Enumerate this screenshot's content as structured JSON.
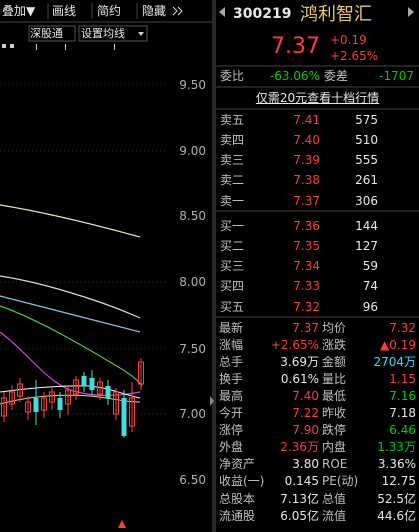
{
  "toolbar": [
    "叠加▼",
    "画线",
    "简约",
    "隐藏"
  ],
  "sub_toolbar": [
    "深股通",
    "设置均线"
  ],
  "y_axis_labels": [
    "9.50",
    "9.00",
    "8.50",
    "8.00",
    "7.50",
    "7.00",
    "6.50"
  ],
  "quote": {
    "code": "300219",
    "name": "鸿利智汇",
    "price": "7.37",
    "change": "+0.19",
    "change_pct": "+2.65%"
  },
  "order_ratio": {
    "label": "委比",
    "value": "-63.06%",
    "diff_label": "委差",
    "diff_value": "-1707"
  },
  "upgrade_link": "仅需20元查看十档行情",
  "asks": [
    [
      "卖五",
      "7.41",
      "575"
    ],
    [
      "卖四",
      "7.40",
      "510"
    ],
    [
      "卖三",
      "7.39",
      "555"
    ],
    [
      "卖二",
      "7.38",
      "261"
    ],
    [
      "卖一",
      "7.37",
      "306"
    ]
  ],
  "bids": [
    [
      "买一",
      "7.36",
      "144"
    ],
    [
      "买二",
      "7.35",
      "127"
    ],
    [
      "买三",
      "7.34",
      "59"
    ],
    [
      "买四",
      "7.33",
      "74"
    ],
    [
      "买五",
      "7.32",
      "96"
    ]
  ],
  "stats": [
    [
      "最新",
      "7.37",
      "均价",
      "7.32"
    ],
    [
      "涨幅",
      "+2.65%",
      "涨跌",
      "▲0.19"
    ],
    [
      "总手",
      "3.69万",
      "金额",
      "2704万"
    ],
    [
      "换手",
      "0.61%",
      "量比",
      "1.15"
    ],
    [
      "最高",
      "7.40",
      "最低",
      "7.16"
    ],
    [
      "今开",
      "7.22",
      "昨收",
      "7.18"
    ],
    [
      "涨停",
      "7.90",
      "跌停",
      "6.46"
    ],
    [
      "外盘",
      "2.36万",
      "内盘",
      "1.33万"
    ],
    [
      "净资产",
      "3.80",
      "ROE",
      "3.36%"
    ],
    [
      "收益(一)",
      "0.145",
      "PE(动)",
      "12.75"
    ],
    [
      "总股本",
      "7.13亿",
      "总值",
      "52.5亿"
    ],
    [
      "流通股",
      "6.05亿",
      "流值",
      "44.6亿"
    ]
  ]
}
